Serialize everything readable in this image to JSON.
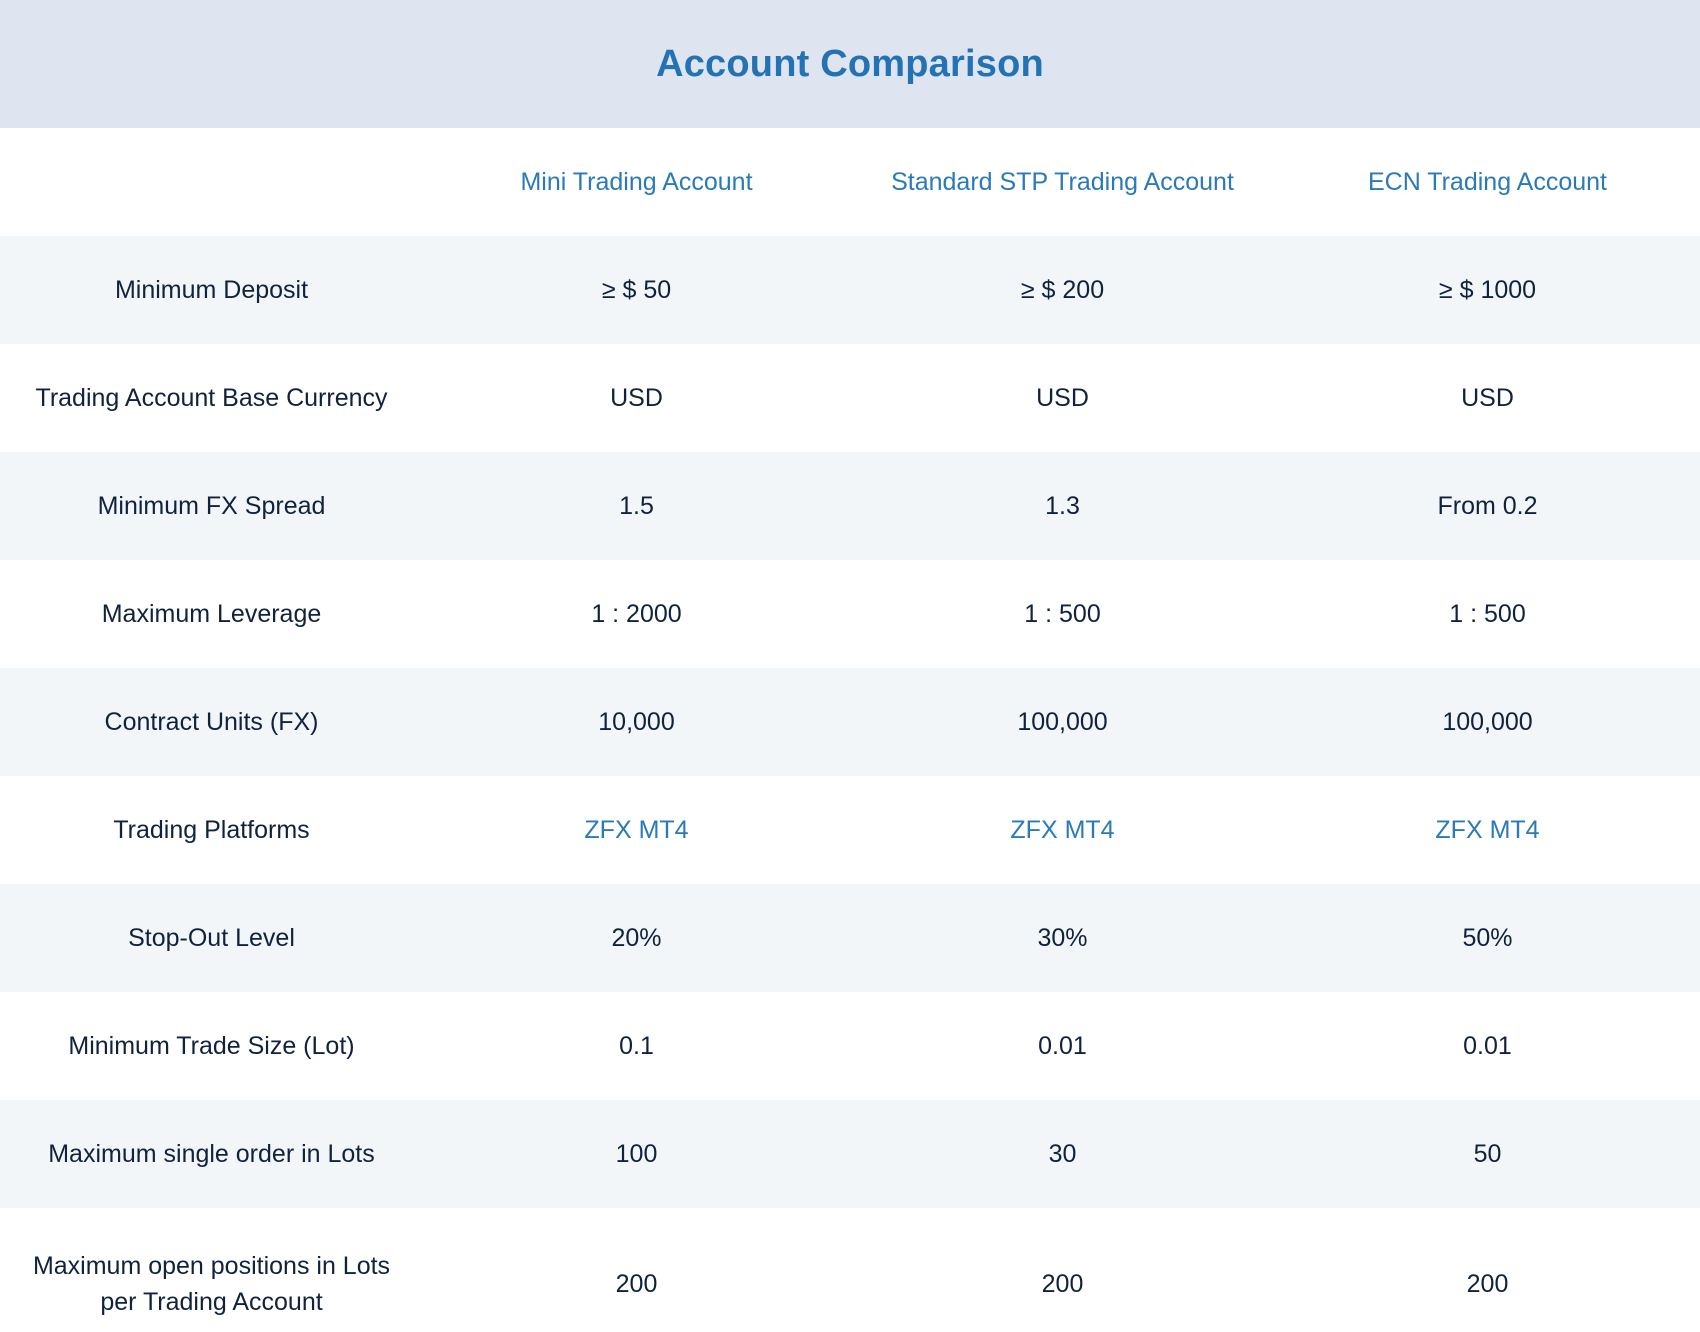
{
  "page": {
    "title": "Account Comparison"
  },
  "colors": {
    "header_band": "#dee5f0",
    "title": "#2272b4",
    "accent_text": "#2a7ab8",
    "body_text": "#10223d",
    "row_shade": "#f2f6f9"
  },
  "table": {
    "columns": [
      "",
      "Mini Trading Account",
      "Standard STP Trading Account",
      "ECN Trading Account"
    ],
    "rows": [
      {
        "label": "Minimum Deposit",
        "values": [
          "≥ $ 50",
          "≥ $ 200",
          "≥ $ 1000"
        ]
      },
      {
        "label": "Trading Account Base Currency",
        "values": [
          "USD",
          "USD",
          "USD"
        ]
      },
      {
        "label": "Minimum FX Spread",
        "values": [
          "1.5",
          "1.3",
          "From 0.2"
        ]
      },
      {
        "label": "Maximum Leverage",
        "values": [
          "1 : 2000",
          "1 : 500",
          "1 : 500"
        ]
      },
      {
        "label": "Contract Units (FX)",
        "values": [
          "10,000",
          "100,000",
          "100,000"
        ]
      },
      {
        "label": "Trading Platforms",
        "values": [
          "ZFX MT4",
          "ZFX MT4",
          "ZFX MT4"
        ]
      },
      {
        "label": "Stop-Out Level",
        "values": [
          "20%",
          "30%",
          "50%"
        ]
      },
      {
        "label": "Minimum Trade Size (Lot)",
        "values": [
          "0.1",
          "0.01",
          "0.01"
        ]
      },
      {
        "label": "Maximum single order in Lots",
        "values": [
          "100",
          "30",
          "50"
        ]
      },
      {
        "label": "Maximum open positions in Lots per Trading Account",
        "values": [
          "200",
          "200",
          "200"
        ]
      }
    ]
  }
}
